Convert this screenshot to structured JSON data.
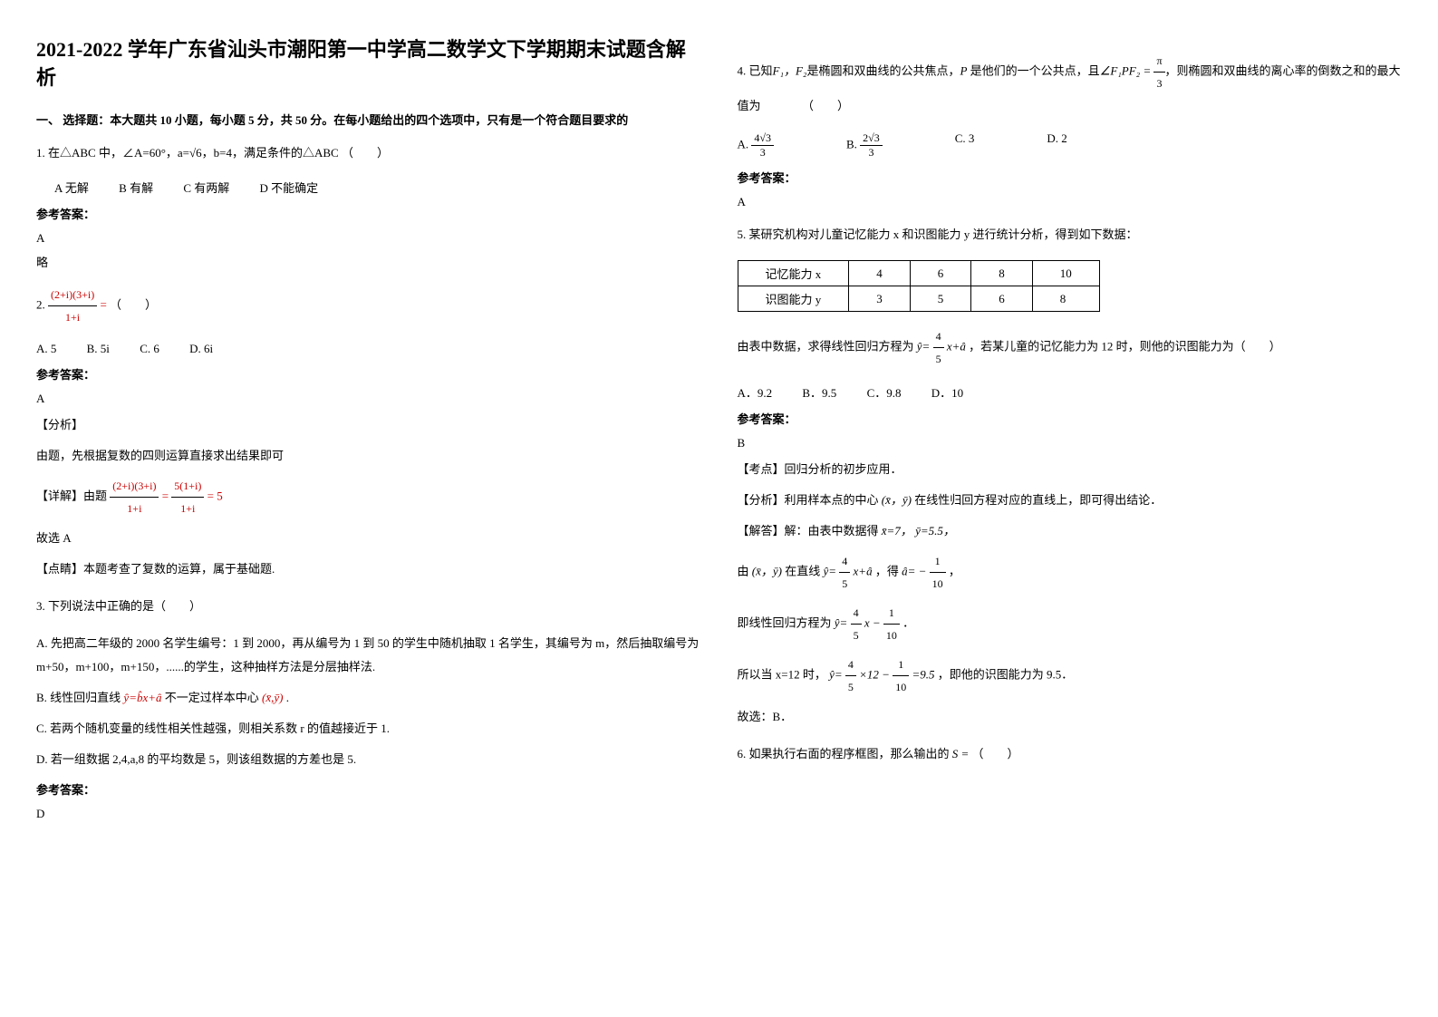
{
  "title": "2021-2022 学年广东省汕头市潮阳第一中学高二数学文下学期期末试题含解析",
  "section1_header": "一、 选择题：本大题共 10 小题，每小题 5 分，共 50 分。在每小题给出的四个选项中，只有是一个符合题目要求的",
  "q1": {
    "text_prefix": "1. 在△ABC 中，∠A=60°，a=",
    "sqrt": "√6",
    "text_suffix": "，b=4，满足条件的△ABC （　　）",
    "opt_a": "A  无解",
    "opt_b": "B  有解",
    "opt_c": "C  有两解",
    "opt_d": "D  不能确定",
    "answer_label": "参考答案：",
    "answer": "A",
    "omit": "略"
  },
  "q2": {
    "prefix": "2. ",
    "frac_num": "(2+i)(3+i)",
    "frac_den": "1+i",
    "eq": "=",
    "paren": "（　　）",
    "opt_a": "A. 5",
    "opt_b": "B. 5i",
    "opt_c": "C. 6",
    "opt_d": "D. 6i",
    "answer_label": "参考答案：",
    "answer": "A",
    "analysis_label": "【分析】",
    "analysis1": "由题，先根据复数的四则运算直接求出结果即可",
    "detail_label": "【详解】由题",
    "detail_num": "(2+i)(3+i)",
    "detail_den": "1+i",
    "detail_eq1": "=",
    "detail_num2": "5(1+i)",
    "detail_den2": "1+i",
    "detail_eq2": "= 5",
    "therefore": "故选 A",
    "tip_label": "【点睛】本题考查了复数的运算，属于基础题."
  },
  "q3": {
    "text": "3. 下列说法中正确的是（　　）",
    "opt_a": "A. 先把高二年级的 2000 名学生编号：1 到 2000，再从编号为 1 到 50 的学生中随机抽取 1 名学生，其编号为 m，然后抽取编号为 m+50，m+100，m+150，......的学生，这种抽样方法是分层抽样法.",
    "opt_b_prefix": "B. 线性回归直线",
    "opt_b_formula": "ŷ=b̂x+â",
    "opt_b_mid": " 不一定过样本中心",
    "opt_b_formula2": "(x̄,ȳ)",
    "opt_b_suffix": ".",
    "opt_c": "C. 若两个随机变量的线性相关性越强，则相关系数 r 的值越接近于 1.",
    "opt_d": "D. 若一组数据 2,4,a,8 的平均数是 5，则该组数据的方差也是 5.",
    "answer_label": "参考答案：",
    "answer": "D"
  },
  "q4": {
    "text_prefix": "4. 已知",
    "f1f2": "F₁，F₂",
    "text_mid1": "是椭圆和双曲线的公共焦点，",
    "p": "P",
    "text_mid2": " 是他们的一个公共点，且",
    "angle": "∠F₁PF₂ = ",
    "pi_num": "π",
    "pi_den": "3",
    "text_suffix": "，则椭圆和双曲线的离心率的倒数之和的最大值为　　　　（　　）",
    "opt_a_num": "4√3",
    "opt_a_den": "3",
    "opt_a_label": "A. ",
    "opt_b_num": "2√3",
    "opt_b_den": "3",
    "opt_b_label": "B. ",
    "opt_c": "C.  3",
    "opt_d": "D.  2",
    "answer_label": "参考答案：",
    "answer": "A"
  },
  "q5": {
    "text": "5. 某研究机构对儿童记忆能力 x 和识图能力 y 进行统计分析，得到如下数据：",
    "table": {
      "row1_label": "记忆能力 x",
      "row1": [
        "4",
        "6",
        "8",
        "10"
      ],
      "row2_label": "识图能力 y",
      "row2": [
        "3",
        "5",
        "6",
        "8"
      ]
    },
    "text2_prefix": "由表中数据，求得线性回归方程为",
    "formula_y": "ŷ=",
    "formula_num": "4",
    "formula_den": "5",
    "formula_suffix": " x+â",
    "text2_suffix": "，若某儿童的记忆能力为 12 时，则他的识图能力为（　　）",
    "opt_a": "A．9.2",
    "opt_b": "B．9.5",
    "opt_c": "C．9.8",
    "opt_d": "D．10",
    "answer_label": "参考答案：",
    "answer": "B",
    "point_label": "【考点】回归分析的初步应用．",
    "analysis_label": "【分析】利用样本点的中心",
    "analysis_formula": "(x̄，ȳ)",
    "analysis_suffix": "在线性归回方程对应的直线上，即可得出结论．",
    "solve_label": "【解答】解：由表中数据得",
    "solve_x": "x̄=7，",
    "solve_y": "ȳ=5.5，",
    "solve_line2_prefix": "由",
    "solve_line2_xy": "(x̄，ȳ)",
    "solve_line2_mid": "在直线",
    "solve_line2_formula": "ŷ=",
    "solve_line2_num": "4",
    "solve_line2_den": "5",
    "solve_line2_suffix": "x+â",
    "solve_line2_get": "，得",
    "solve_line2_a": "â= −",
    "solve_line2_a_num": "1",
    "solve_line2_a_den": "10",
    "solve_line2_end": "，",
    "solve_line3_prefix": "即线性回归方程为",
    "solve_line3_y": "ŷ=",
    "solve_line3_num1": "4",
    "solve_line3_den1": "5",
    "solve_line3_x": "x −",
    "solve_line3_num2": "1",
    "solve_line3_den2": "10",
    "solve_line3_end": "．",
    "solve_line4_prefix": "所以当 x=12 时，",
    "solve_line4_y": "ŷ=",
    "solve_line4_num1": "4",
    "solve_line4_den1": "5",
    "solve_line4_times": "×12 −",
    "solve_line4_num2": "1",
    "solve_line4_den2": "10",
    "solve_line4_eq": "=9.5",
    "solve_line4_suffix": "，即他的识图能力为 9.5．",
    "therefore": "故选：B．"
  },
  "q6": {
    "text_prefix": "6. 如果执行右面的程序框图，那么输出的",
    "s": "S =",
    "text_suffix": "（　　）"
  }
}
